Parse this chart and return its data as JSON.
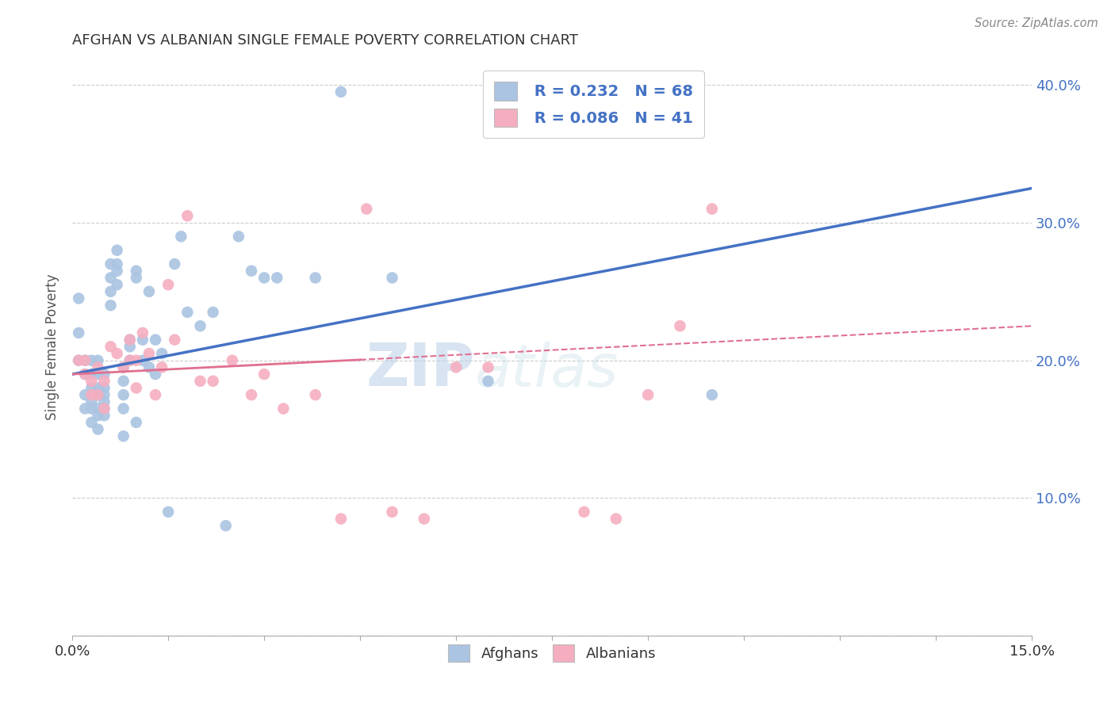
{
  "title": "AFGHAN VS ALBANIAN SINGLE FEMALE POVERTY CORRELATION CHART",
  "source": "Source: ZipAtlas.com",
  "ylabel": "Single Female Poverty",
  "xlim": [
    0.0,
    0.15
  ],
  "ylim": [
    0.0,
    0.42
  ],
  "afghan_color": "#aac4e2",
  "albanian_color": "#f5aec0",
  "afghan_line_color": "#4472c4",
  "albanian_line_color": "#e07090",
  "legend_R_afghan": "R = 0.232",
  "legend_N_afghan": "N = 68",
  "legend_R_albanian": "R = 0.086",
  "legend_N_albanian": "N = 41",
  "watermark_zip": "ZIP",
  "watermark_atlas": "atlas",
  "afghan_line_x0": 0.0,
  "afghan_line_y0": 0.19,
  "afghan_line_x1": 0.15,
  "afghan_line_y1": 0.325,
  "albanian_line_x0": 0.0,
  "albanian_line_y0": 0.19,
  "albanian_line_x1": 0.15,
  "albanian_line_y1": 0.225,
  "afghans_x": [
    0.001,
    0.001,
    0.001,
    0.002,
    0.002,
    0.002,
    0.002,
    0.003,
    0.003,
    0.003,
    0.003,
    0.003,
    0.003,
    0.004,
    0.004,
    0.004,
    0.004,
    0.004,
    0.004,
    0.004,
    0.005,
    0.005,
    0.005,
    0.005,
    0.005,
    0.005,
    0.006,
    0.006,
    0.006,
    0.006,
    0.007,
    0.007,
    0.007,
    0.007,
    0.008,
    0.008,
    0.008,
    0.008,
    0.008,
    0.009,
    0.009,
    0.009,
    0.01,
    0.01,
    0.01,
    0.011,
    0.011,
    0.012,
    0.012,
    0.013,
    0.013,
    0.014,
    0.015,
    0.016,
    0.017,
    0.018,
    0.02,
    0.022,
    0.024,
    0.026,
    0.028,
    0.03,
    0.032,
    0.038,
    0.042,
    0.05,
    0.065,
    0.1
  ],
  "afghans_y": [
    0.245,
    0.22,
    0.2,
    0.2,
    0.19,
    0.175,
    0.165,
    0.2,
    0.19,
    0.18,
    0.17,
    0.165,
    0.155,
    0.2,
    0.19,
    0.18,
    0.175,
    0.165,
    0.16,
    0.15,
    0.19,
    0.18,
    0.175,
    0.17,
    0.165,
    0.16,
    0.27,
    0.26,
    0.25,
    0.24,
    0.28,
    0.27,
    0.265,
    0.255,
    0.195,
    0.185,
    0.175,
    0.165,
    0.145,
    0.215,
    0.21,
    0.2,
    0.265,
    0.26,
    0.155,
    0.215,
    0.2,
    0.25,
    0.195,
    0.215,
    0.19,
    0.205,
    0.09,
    0.27,
    0.29,
    0.235,
    0.225,
    0.235,
    0.08,
    0.29,
    0.265,
    0.26,
    0.26,
    0.26,
    0.395,
    0.26,
    0.185,
    0.175
  ],
  "albanians_x": [
    0.001,
    0.002,
    0.002,
    0.003,
    0.003,
    0.004,
    0.004,
    0.005,
    0.005,
    0.006,
    0.007,
    0.008,
    0.009,
    0.009,
    0.01,
    0.01,
    0.011,
    0.012,
    0.013,
    0.014,
    0.015,
    0.016,
    0.018,
    0.02,
    0.022,
    0.025,
    0.028,
    0.03,
    0.033,
    0.038,
    0.042,
    0.046,
    0.05,
    0.055,
    0.06,
    0.065,
    0.08,
    0.085,
    0.09,
    0.095,
    0.1
  ],
  "albanians_y": [
    0.2,
    0.2,
    0.19,
    0.185,
    0.175,
    0.195,
    0.175,
    0.185,
    0.165,
    0.21,
    0.205,
    0.195,
    0.215,
    0.2,
    0.2,
    0.18,
    0.22,
    0.205,
    0.175,
    0.195,
    0.255,
    0.215,
    0.305,
    0.185,
    0.185,
    0.2,
    0.175,
    0.19,
    0.165,
    0.175,
    0.085,
    0.31,
    0.09,
    0.085,
    0.195,
    0.195,
    0.09,
    0.085,
    0.175,
    0.225,
    0.31
  ]
}
